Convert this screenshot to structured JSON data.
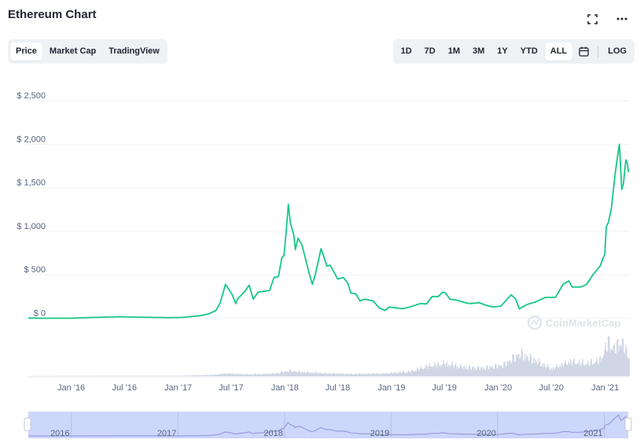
{
  "header": {
    "title": "Ethereum Chart",
    "expand_icon": "expand-icon",
    "more_icon": "more-horizontal-icon"
  },
  "view_tabs": [
    {
      "label": "Price",
      "active": true
    },
    {
      "label": "Market Cap",
      "active": false
    },
    {
      "label": "TradingView",
      "active": false
    }
  ],
  "range_tabs": [
    {
      "label": "1D",
      "active": false
    },
    {
      "label": "7D",
      "active": false
    },
    {
      "label": "1M",
      "active": false
    },
    {
      "label": "3M",
      "active": false
    },
    {
      "label": "1Y",
      "active": false
    },
    {
      "label": "YTD",
      "active": false
    },
    {
      "label": "ALL",
      "active": true
    }
  ],
  "calendar_icon": "calendar-icon",
  "log_label": "LOG",
  "watermark": "CoinMarketCap",
  "colors": {
    "line": "#16c784",
    "volume": "#cfd6e4",
    "navigator_bg": "#cdd6fb",
    "navigator_line": "#8c94d6",
    "grid": "#eff2f5",
    "axis_text": "#58667e"
  },
  "chart_data": {
    "type": "line",
    "series": [
      {
        "values": [
          [
            "2015-08-07",
            2.8
          ],
          [
            "2015-10-01",
            0.7
          ],
          [
            "2016-01-01",
            0.95
          ],
          [
            "2016-03-01",
            9
          ],
          [
            "2016-06-15",
            18
          ],
          [
            "2016-09-01",
            12
          ],
          [
            "2016-12-01",
            8
          ],
          [
            "2017-01-15",
            10
          ],
          [
            "2017-03-15",
            30
          ],
          [
            "2017-04-15",
            50
          ],
          [
            "2017-05-10",
            90
          ],
          [
            "2017-05-25",
            180
          ],
          [
            "2017-06-12",
            390
          ],
          [
            "2017-06-20",
            350
          ],
          [
            "2017-07-05",
            270
          ],
          [
            "2017-07-17",
            170
          ],
          [
            "2017-07-25",
            230
          ],
          [
            "2017-08-15",
            300
          ],
          [
            "2017-09-01",
            380
          ],
          [
            "2017-09-15",
            220
          ],
          [
            "2017-10-01",
            300
          ],
          [
            "2017-10-20",
            310
          ],
          [
            "2017-11-10",
            320
          ],
          [
            "2017-11-25",
            470
          ],
          [
            "2017-12-10",
            480
          ],
          [
            "2017-12-22",
            700
          ],
          [
            "2017-12-29",
            720
          ],
          [
            "2018-01-05",
            970
          ],
          [
            "2018-01-13",
            1310
          ],
          [
            "2018-01-20",
            1100
          ],
          [
            "2018-02-01",
            950
          ],
          [
            "2018-02-06",
            790
          ],
          [
            "2018-02-15",
            920
          ],
          [
            "2018-02-28",
            850
          ],
          [
            "2018-03-10",
            720
          ],
          [
            "2018-03-25",
            520
          ],
          [
            "2018-04-05",
            390
          ],
          [
            "2018-04-15",
            500
          ],
          [
            "2018-04-25",
            650
          ],
          [
            "2018-05-05",
            800
          ],
          [
            "2018-05-15",
            700
          ],
          [
            "2018-05-25",
            600
          ],
          [
            "2018-06-05",
            610
          ],
          [
            "2018-06-20",
            520
          ],
          [
            "2018-07-01",
            450
          ],
          [
            "2018-07-20",
            470
          ],
          [
            "2018-08-05",
            400
          ],
          [
            "2018-08-15",
            290
          ],
          [
            "2018-09-01",
            280
          ],
          [
            "2018-09-15",
            200
          ],
          [
            "2018-10-01",
            220
          ],
          [
            "2018-10-30",
            200
          ],
          [
            "2018-11-20",
            120
          ],
          [
            "2018-12-10",
            90
          ],
          [
            "2018-12-25",
            130
          ],
          [
            "2019-01-15",
            120
          ],
          [
            "2019-02-10",
            110
          ],
          [
            "2019-03-10",
            135
          ],
          [
            "2019-04-10",
            170
          ],
          [
            "2019-05-01",
            165
          ],
          [
            "2019-05-20",
            250
          ],
          [
            "2019-06-10",
            250
          ],
          [
            "2019-06-25",
            300
          ],
          [
            "2019-07-05",
            290
          ],
          [
            "2019-07-20",
            220
          ],
          [
            "2019-08-10",
            210
          ],
          [
            "2019-09-10",
            180
          ],
          [
            "2019-09-25",
            170
          ],
          [
            "2019-10-15",
            175
          ],
          [
            "2019-10-28",
            180
          ],
          [
            "2019-11-20",
            150
          ],
          [
            "2019-12-15",
            130
          ],
          [
            "2020-01-10",
            140
          ],
          [
            "2020-02-15",
            270
          ],
          [
            "2020-03-01",
            220
          ],
          [
            "2020-03-13",
            110
          ],
          [
            "2020-04-10",
            160
          ],
          [
            "2020-05-10",
            190
          ],
          [
            "2020-06-10",
            240
          ],
          [
            "2020-07-15",
            240
          ],
          [
            "2020-08-10",
            390
          ],
          [
            "2020-08-30",
            430
          ],
          [
            "2020-09-10",
            360
          ],
          [
            "2020-10-10",
            360
          ],
          [
            "2020-10-30",
            390
          ],
          [
            "2020-11-20",
            500
          ],
          [
            "2020-12-15",
            600
          ],
          [
            "2020-12-31",
            740
          ],
          [
            "2021-01-05",
            1050
          ],
          [
            "2021-01-12",
            1100
          ],
          [
            "2021-01-22",
            1250
          ],
          [
            "2021-02-04",
            1650
          ],
          [
            "2021-02-10",
            1800
          ],
          [
            "2021-02-19",
            2000
          ],
          [
            "2021-02-27",
            1480
          ],
          [
            "2021-03-05",
            1550
          ],
          [
            "2021-03-13",
            1820
          ],
          [
            "2021-03-18",
            1780
          ],
          [
            "2021-03-22",
            1680
          ]
        ]
      }
    ],
    "volume_values": [
      [
        "2015-08-07",
        0.2
      ],
      [
        "2016-06-01",
        0.4
      ],
      [
        "2017-01-01",
        0.4
      ],
      [
        "2017-05-01",
        1.5
      ],
      [
        "2017-06-15",
        3
      ],
      [
        "2017-09-01",
        2
      ],
      [
        "2017-12-01",
        3
      ],
      [
        "2018-01-15",
        6
      ],
      [
        "2018-03-01",
        4.5
      ],
      [
        "2018-06-01",
        3
      ],
      [
        "2018-09-01",
        2.5
      ],
      [
        "2018-12-01",
        3
      ],
      [
        "2019-03-01",
        5
      ],
      [
        "2019-05-15",
        12
      ],
      [
        "2019-07-01",
        14
      ],
      [
        "2019-09-01",
        10
      ],
      [
        "2019-11-01",
        9
      ],
      [
        "2020-01-15",
        12
      ],
      [
        "2020-03-13",
        25
      ],
      [
        "2020-05-01",
        18
      ],
      [
        "2020-07-01",
        8
      ],
      [
        "2020-09-01",
        16
      ],
      [
        "2020-11-01",
        14
      ],
      [
        "2020-12-15",
        18
      ],
      [
        "2021-01-10",
        38
      ],
      [
        "2021-02-01",
        30
      ],
      [
        "2021-02-22",
        40
      ],
      [
        "2021-03-22",
        22
      ]
    ],
    "yticks": [
      0,
      500,
      1000,
      1500,
      2000,
      2500
    ],
    "ytick_labels": [
      "$ 0",
      "$ 500",
      "$ 1,000",
      "$ 1,500",
      "$ 2,000",
      "$ 2,500"
    ],
    "ylim": [
      -50,
      2500
    ],
    "xlim": [
      "2015-08-07",
      "2021-03-24"
    ],
    "xticks": [
      "2016-01-01",
      "2016-07-01",
      "2017-01-01",
      "2017-07-01",
      "2018-01-01",
      "2018-07-01",
      "2019-01-01",
      "2019-07-01",
      "2020-01-01",
      "2020-07-01",
      "2021-01-01"
    ],
    "xtick_labels": [
      "Jan '16",
      "Jul '16",
      "Jan '17",
      "Jul '17",
      "Jan '18",
      "Jul '18",
      "Jan '19",
      "Jul '19",
      "Jan '20",
      "Jul '20",
      "Jan '21"
    ],
    "navigator_years": [
      "2016-01-01",
      "2017-01-01",
      "2018-01-01",
      "2019-01-01",
      "2020-01-01",
      "2021-01-01"
    ],
    "navigator_year_labels": [
      "2016",
      "2017",
      "2018",
      "2019",
      "2020",
      "2021"
    ],
    "grid": true,
    "legend": "none"
  }
}
